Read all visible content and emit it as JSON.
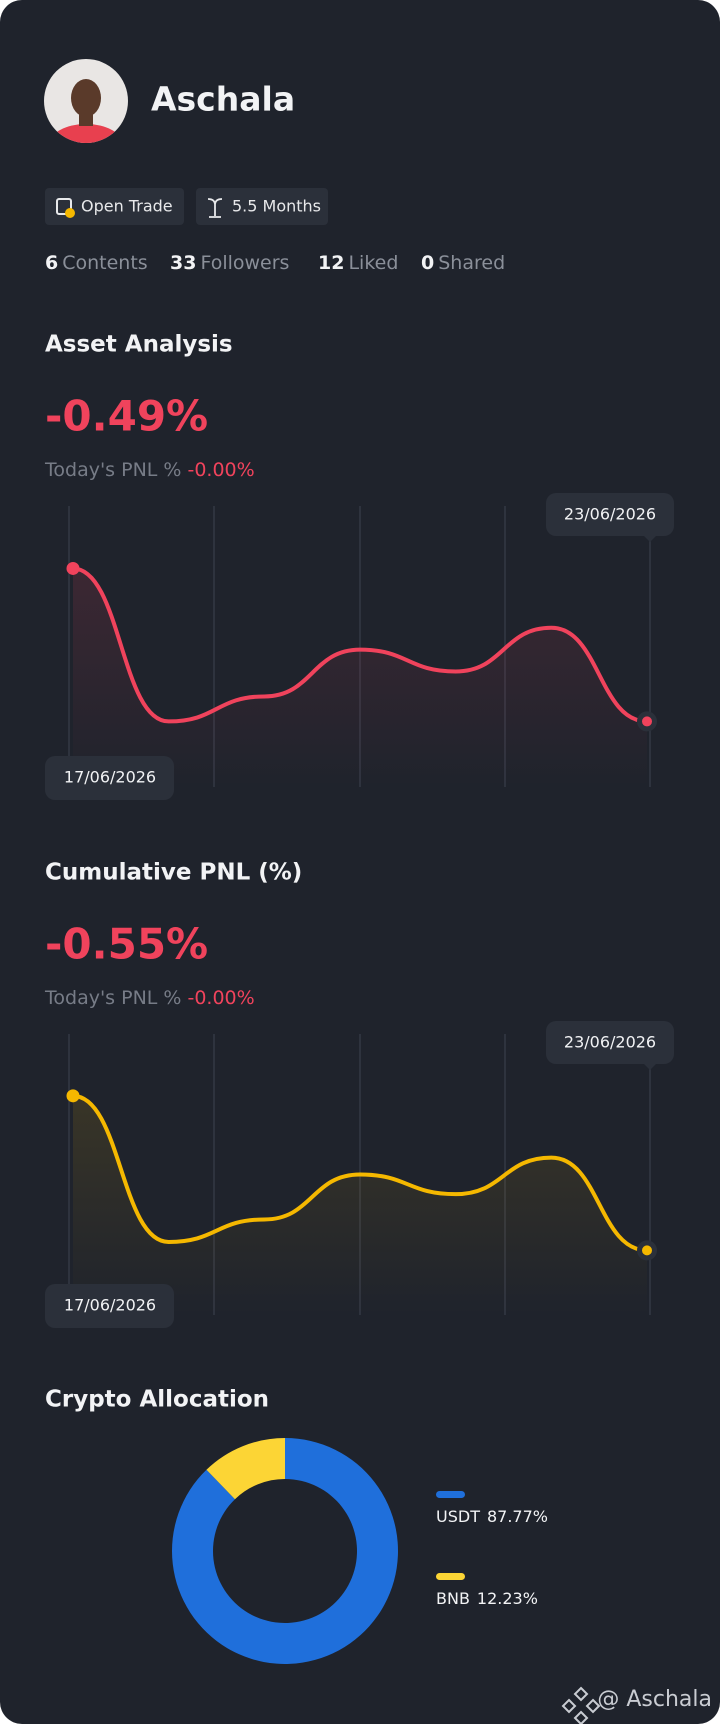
{
  "profile": {
    "name": "Aschala",
    "badges": [
      "Open Trade",
      "5.5 Months"
    ],
    "stats": [
      {
        "value": 6,
        "label": "Contents"
      },
      {
        "value": 33,
        "label": "Followers"
      },
      {
        "value": 12,
        "label": "Liked"
      },
      {
        "value": 0,
        "label": "Shared"
      }
    ]
  },
  "sections": [
    {
      "title": "Asset Analysis",
      "value": "-0.49%",
      "pnl_label": "Today's PNL %",
      "pnl_value": "-0.00%",
      "chart": {
        "type": "line",
        "color": "#f0435c",
        "start_label": "17/06/2026",
        "end_label": "23/06/2026",
        "values": [
          0,
          -0.49,
          -0.41,
          -0.26,
          -0.33,
          -0.19,
          -0.49
        ],
        "ylim": [
          -0.7,
          0.2
        ]
      }
    },
    {
      "title": "Cumulative PNL (%)",
      "value": "-0.55%",
      "pnl_label": "Today's PNL %",
      "pnl_value": "-0.00%",
      "chart": {
        "type": "line",
        "color": "#f5b800",
        "start_label": "17/06/2026",
        "end_label": "23/06/2026",
        "values": [
          0,
          -0.52,
          -0.44,
          -0.28,
          -0.35,
          -0.22,
          -0.55
        ],
        "ylim": [
          -0.78,
          0.22
        ]
      }
    }
  ],
  "allocation": {
    "type": "pie",
    "title": "Crypto Allocation",
    "categories": [
      "USDT",
      "BNB"
    ],
    "values": [
      87.77,
      12.23
    ],
    "value_labels": [
      "87.77%",
      "12.23%"
    ],
    "colors": [
      "#1f6fdb",
      "#fcd535"
    ]
  },
  "watermark": "@ Aschala"
}
